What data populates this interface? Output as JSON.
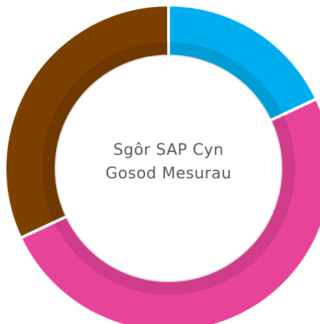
{
  "chart_data": {
    "type": "donut",
    "title": "Sgôr SAP Cyn Gosod Mesurau",
    "values": [
      18,
      50,
      32
    ],
    "colors": [
      "#00aeef",
      "#e8439a",
      "#7b3f00"
    ]
  }
}
